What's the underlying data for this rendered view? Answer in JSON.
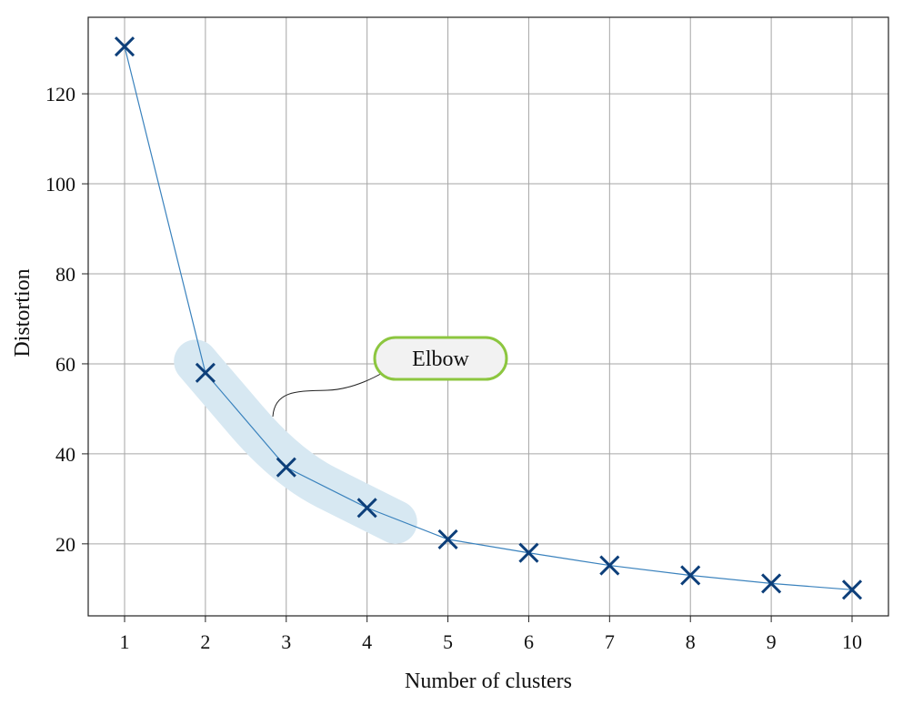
{
  "chart_data": {
    "type": "line",
    "x": [
      1,
      2,
      3,
      4,
      5,
      6,
      7,
      8,
      9,
      10
    ],
    "series": [
      {
        "values": [
          130.5,
          58.0,
          37.0,
          28.0,
          21.0,
          18.0,
          15.2,
          13.0,
          11.2,
          9.8
        ]
      }
    ],
    "xlabel": "Number of clusters",
    "ylabel": "Distortion",
    "xlim": [
      0.55,
      10.45
    ],
    "ylim": [
      4,
      137
    ],
    "xticks": [
      "1",
      "2",
      "3",
      "4",
      "5",
      "6",
      "7",
      "8",
      "9",
      "10"
    ],
    "yticks": [
      "20",
      "40",
      "60",
      "80",
      "100",
      "120"
    ],
    "grid": true,
    "marker": "x",
    "colors": {
      "line": "#3a82bd",
      "marker": "#0d3f7a",
      "highlight": "#d7e8f2",
      "callout_border": "#8cc63f",
      "callout_fill": "#f2f2f2",
      "grid": "#a6a6a6"
    },
    "annotation": {
      "text": "Elbow",
      "highlight_x_range": [
        2,
        4
      ]
    }
  }
}
